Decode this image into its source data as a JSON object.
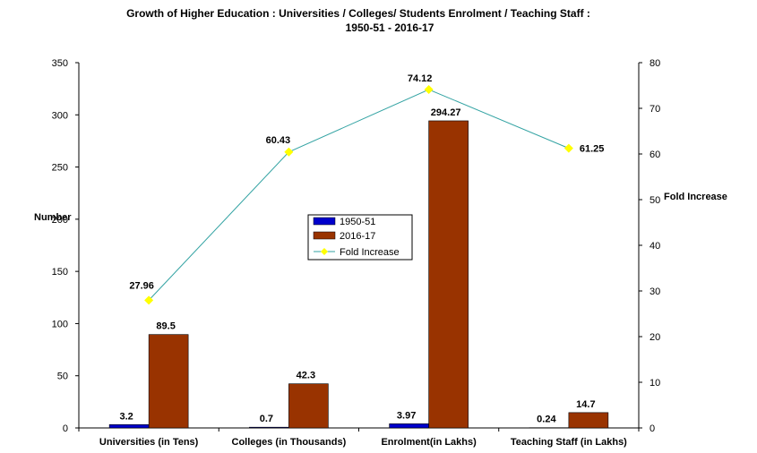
{
  "chart_data": {
    "type": "bar",
    "title_line1": "Growth of Higher Education : Universities / Colleges/ Students Enrolment / Teaching Staff :",
    "title_line2": "1950-51  - 2016-17",
    "categories": [
      "Universities (in Tens)",
      "Colleges (in Thousands)",
      "Enrolment(in Lakhs)",
      "Teaching Staff (in Lakhs)"
    ],
    "series": [
      {
        "name": "1950-51",
        "values": [
          3.2,
          0.7,
          3.97,
          0.24
        ],
        "color": "#0000cc",
        "labels": [
          "3.2",
          "0.7",
          "3.97",
          "0.24"
        ]
      },
      {
        "name": "2016-17",
        "values": [
          89.5,
          42.3,
          294.27,
          14.7
        ],
        "color": "#993300",
        "labels": [
          "89.5",
          "42.3",
          "294.27",
          "14.7"
        ]
      }
    ],
    "line_series": {
      "name": "Fold Increase",
      "values": [
        27.96,
        60.43,
        74.12,
        61.25
      ],
      "labels": [
        "27.96",
        "60.43",
        "74.12",
        "61.25"
      ],
      "line_color": "#33a3a3",
      "marker_color": "#ffff00"
    },
    "ylabel": "Number",
    "y2label": "Fold Increase",
    "ylim": [
      0,
      350
    ],
    "yticks": [
      "0",
      "50",
      "100",
      "150",
      "200",
      "250",
      "300",
      "350"
    ],
    "y2lim": [
      0,
      80
    ],
    "y2ticks": [
      "0",
      "10",
      "20",
      "30",
      "40",
      "50",
      "60",
      "70",
      "80"
    ],
    "grid": false,
    "legend_position": "center"
  }
}
